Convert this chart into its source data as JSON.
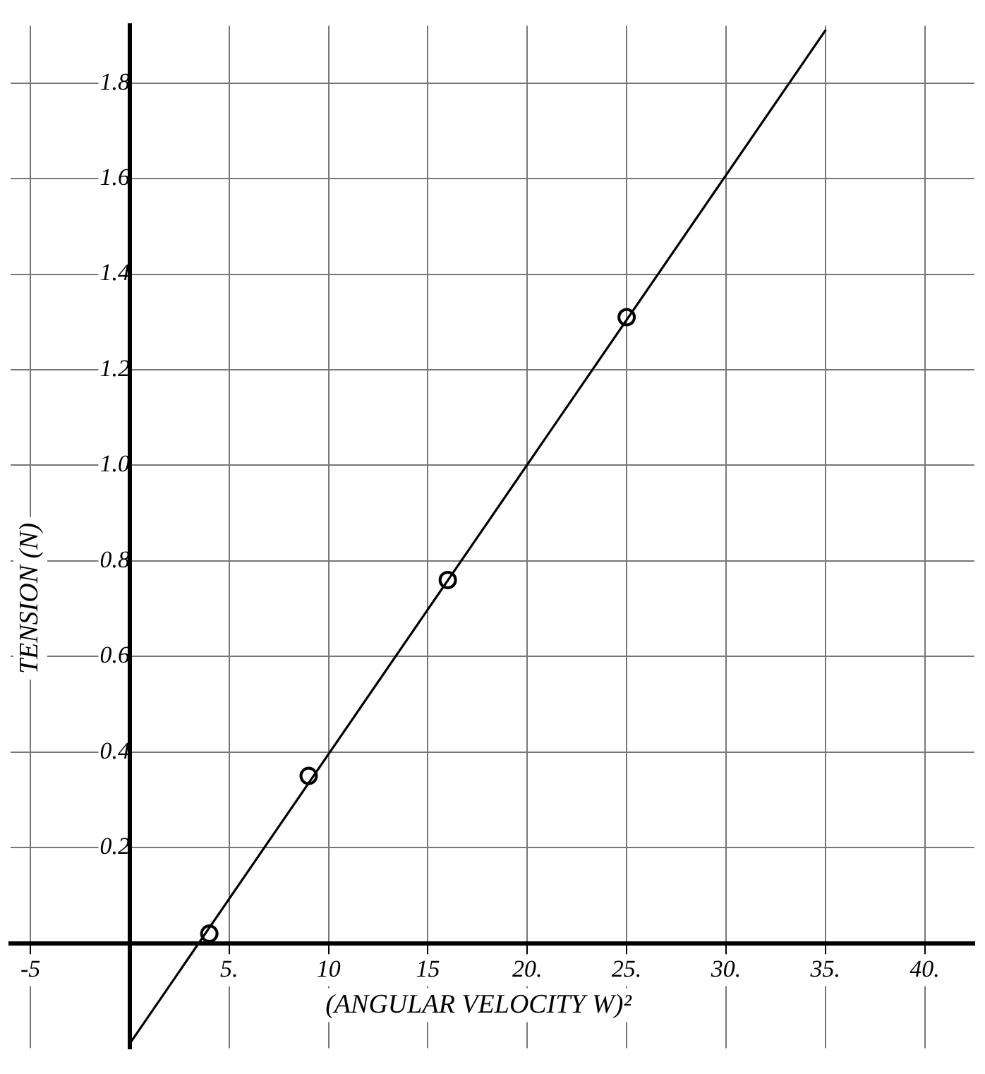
{
  "chart_data": {
    "type": "scatter",
    "xlabel": "(ANGULAR VELOCITY W)²",
    "ylabel": "TENSION (N)",
    "xlim": [
      -6,
      42.5
    ],
    "ylim": [
      -0.22,
      1.92
    ],
    "xticks": [
      {
        "value": -5,
        "label": "-5"
      },
      {
        "value": 5,
        "label": "5."
      },
      10,
      15,
      {
        "value": 20,
        "label": "20."
      },
      {
        "value": 25,
        "label": "25."
      },
      {
        "value": 30,
        "label": "30."
      },
      {
        "value": 35,
        "label": "35."
      },
      {
        "value": 40,
        "label": "40."
      }
    ],
    "yticks": [
      0.2,
      0.4,
      0.6,
      0.8,
      {
        "value": 1.0,
        "label": "1.0"
      },
      1.2,
      1.4,
      1.6,
      1.8
    ],
    "grid": true,
    "legend": false,
    "series": [
      {
        "type": "scatter",
        "color": "#000000",
        "x": [
          4,
          9,
          16,
          25
        ],
        "values": [
          0.02,
          0.35,
          0.76,
          1.31
        ],
        "marker": "circle"
      },
      {
        "type": "line",
        "color": "#000000",
        "x": [
          0,
          35
        ],
        "values": [
          -0.21,
          1.91
        ],
        "marker": "none",
        "line_style": "solid"
      }
    ]
  }
}
